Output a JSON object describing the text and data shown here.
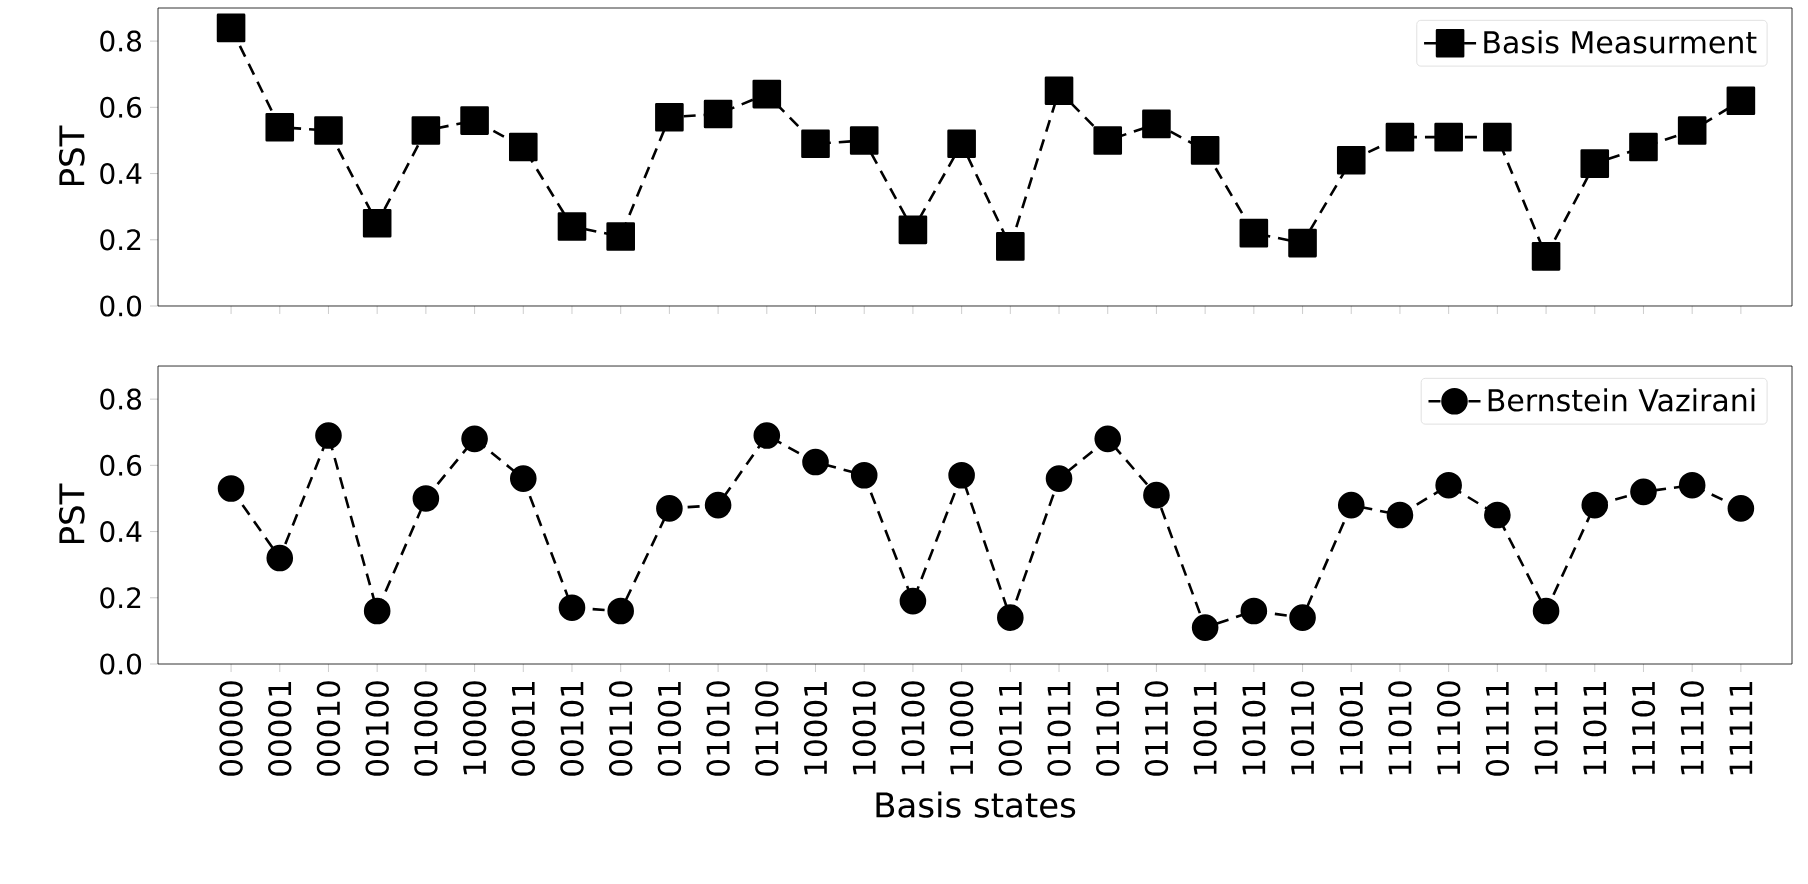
{
  "chart_data": [
    {
      "type": "line",
      "ylabel": "PST",
      "categories": [
        "00000",
        "00001",
        "00010",
        "00100",
        "01000",
        "10000",
        "00011",
        "00101",
        "00110",
        "01001",
        "01010",
        "01100",
        "10001",
        "10010",
        "10100",
        "11000",
        "00111",
        "01011",
        "01101",
        "01110",
        "10011",
        "10101",
        "10110",
        "11001",
        "11010",
        "11100",
        "01111",
        "10111",
        "11011",
        "11101",
        "11110",
        "11111"
      ],
      "series": [
        {
          "name": "Basis Measurment",
          "color": "#000000",
          "values": [
            0.84,
            0.54,
            0.53,
            0.25,
            0.53,
            0.56,
            0.48,
            0.24,
            0.21,
            0.57,
            0.58,
            0.64,
            0.49,
            0.5,
            0.23,
            0.49,
            0.18,
            0.65,
            0.5,
            0.55,
            0.47,
            0.22,
            0.19,
            0.44,
            0.51,
            0.51,
            0.51,
            0.15,
            0.43,
            0.48,
            0.53,
            0.62
          ]
        }
      ],
      "marker": "square",
      "line_style": "dashed",
      "legend": "top right",
      "ylim": [
        0,
        0.9
      ],
      "yticks": [
        {
          "value": 0,
          "label": "0.0"
        },
        0.2,
        0.4,
        0.6,
        0.8
      ],
      "tick_labels": "y"
    },
    {
      "type": "line",
      "ylabel": "PST",
      "xlabel": "Basis states",
      "categories": [
        "00000",
        "00001",
        "00010",
        "00100",
        "01000",
        "10000",
        "00011",
        "00101",
        "00110",
        "01001",
        "01010",
        "01100",
        "10001",
        "10010",
        "10100",
        "11000",
        "00111",
        "01011",
        "01101",
        "01110",
        "10011",
        "10101",
        "10110",
        "11001",
        "11010",
        "11100",
        "01111",
        "10111",
        "11011",
        "11101",
        "11110",
        "11111"
      ],
      "series": [
        {
          "name": "Bernstein Vazirani",
          "color": "#000000",
          "values": [
            0.53,
            0.32,
            0.69,
            0.16,
            0.5,
            0.68,
            0.56,
            0.17,
            0.16,
            0.47,
            0.48,
            0.69,
            0.61,
            0.57,
            0.19,
            0.57,
            0.14,
            0.56,
            0.68,
            0.51,
            0.11,
            0.16,
            0.14,
            0.48,
            0.45,
            0.54,
            0.45,
            0.16,
            0.48,
            0.52,
            0.54,
            0.47
          ]
        }
      ],
      "marker": "circle",
      "line_style": "dashed",
      "legend": "top right",
      "ylim": [
        0,
        0.9
      ],
      "yticks": [
        {
          "value": 0,
          "label": "0.0"
        },
        0.2,
        0.4,
        0.6,
        0.8
      ]
    }
  ]
}
